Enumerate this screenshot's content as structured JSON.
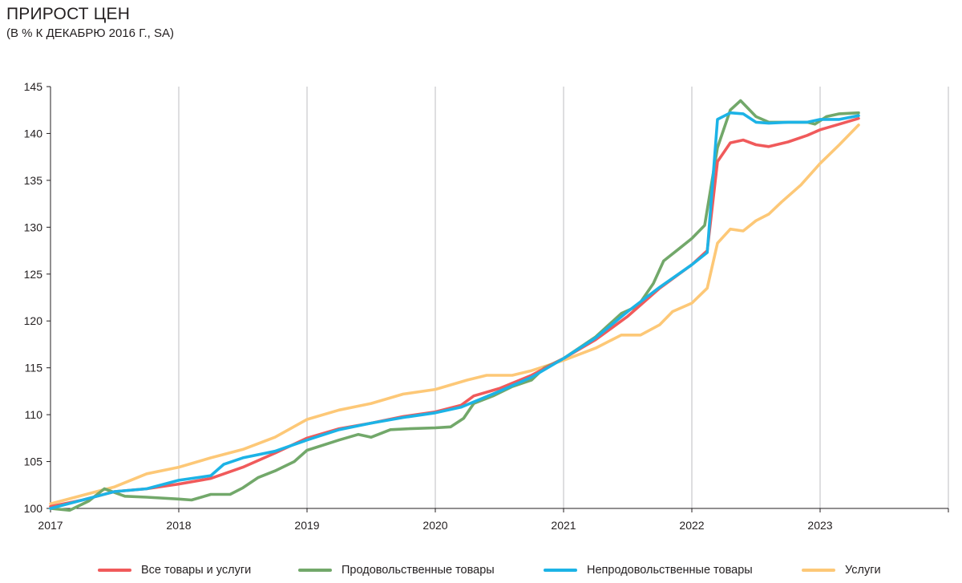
{
  "header": {
    "title": "ПРИРОСТ ЦЕН",
    "subtitle": "(В % К ДЕКАБРЮ 2016 Г., SA)"
  },
  "chart_data": {
    "type": "line",
    "title": "ПРИРОСТ ЦЕН",
    "subtitle": "(В % К ДЕКАБРЮ 2016 Г., SA)",
    "xlabel": "",
    "ylabel": "",
    "xlim": [
      2017,
      2024
    ],
    "ylim": [
      100,
      145
    ],
    "y_ticks": [
      100,
      105,
      110,
      115,
      120,
      125,
      130,
      135,
      140,
      145
    ],
    "x_ticks": [
      "2017",
      "2018",
      "2019",
      "2020",
      "2021",
      "2022",
      "2023"
    ],
    "grid": "vertical",
    "legend_position": "bottom",
    "series": [
      {
        "name": "Все товары и услуги",
        "color": "#f05a5b",
        "points": [
          [
            2017.0,
            100.2
          ],
          [
            2017.25,
            100.9
          ],
          [
            2017.5,
            101.8
          ],
          [
            2017.75,
            102.1
          ],
          [
            2018.0,
            102.6
          ],
          [
            2018.25,
            103.2
          ],
          [
            2018.5,
            104.4
          ],
          [
            2018.75,
            105.9
          ],
          [
            2019.0,
            107.5
          ],
          [
            2019.25,
            108.5
          ],
          [
            2019.5,
            109.1
          ],
          [
            2019.75,
            109.8
          ],
          [
            2020.0,
            110.3
          ],
          [
            2020.2,
            111.0
          ],
          [
            2020.3,
            112.0
          ],
          [
            2020.5,
            112.8
          ],
          [
            2020.75,
            114.2
          ],
          [
            2021.0,
            116.0
          ],
          [
            2021.25,
            118.0
          ],
          [
            2021.5,
            120.5
          ],
          [
            2021.75,
            123.5
          ],
          [
            2022.0,
            126.0
          ],
          [
            2022.12,
            127.5
          ],
          [
            2022.2,
            137.0
          ],
          [
            2022.3,
            139.0
          ],
          [
            2022.4,
            139.3
          ],
          [
            2022.5,
            138.8
          ],
          [
            2022.6,
            138.6
          ],
          [
            2022.75,
            139.1
          ],
          [
            2022.9,
            139.8
          ],
          [
            2023.0,
            140.4
          ],
          [
            2023.15,
            141.0
          ],
          [
            2023.3,
            141.6
          ]
        ]
      },
      {
        "name": "Продовольственные товары",
        "color": "#72a86a",
        "points": [
          [
            2017.0,
            100.0
          ],
          [
            2017.15,
            99.8
          ],
          [
            2017.3,
            100.8
          ],
          [
            2017.42,
            102.1
          ],
          [
            2017.58,
            101.3
          ],
          [
            2017.75,
            101.2
          ],
          [
            2018.0,
            101.0
          ],
          [
            2018.1,
            100.9
          ],
          [
            2018.25,
            101.5
          ],
          [
            2018.4,
            101.5
          ],
          [
            2018.5,
            102.2
          ],
          [
            2018.62,
            103.3
          ],
          [
            2018.75,
            104.0
          ],
          [
            2018.9,
            105.0
          ],
          [
            2019.0,
            106.2
          ],
          [
            2019.25,
            107.3
          ],
          [
            2019.4,
            107.9
          ],
          [
            2019.5,
            107.6
          ],
          [
            2019.65,
            108.4
          ],
          [
            2019.8,
            108.5
          ],
          [
            2020.0,
            108.6
          ],
          [
            2020.12,
            108.7
          ],
          [
            2020.22,
            109.6
          ],
          [
            2020.3,
            111.2
          ],
          [
            2020.45,
            112.0
          ],
          [
            2020.6,
            113.0
          ],
          [
            2020.75,
            113.7
          ],
          [
            2020.85,
            115.0
          ],
          [
            2021.0,
            116.0
          ],
          [
            2021.25,
            118.3
          ],
          [
            2021.45,
            120.8
          ],
          [
            2021.58,
            121.6
          ],
          [
            2021.7,
            124.0
          ],
          [
            2021.78,
            126.4
          ],
          [
            2021.9,
            127.7
          ],
          [
            2022.0,
            128.8
          ],
          [
            2022.1,
            130.2
          ],
          [
            2022.2,
            138.5
          ],
          [
            2022.3,
            142.5
          ],
          [
            2022.38,
            143.5
          ],
          [
            2022.5,
            141.8
          ],
          [
            2022.6,
            141.2
          ],
          [
            2022.75,
            141.2
          ],
          [
            2022.9,
            141.2
          ],
          [
            2022.96,
            141.0
          ],
          [
            2023.05,
            141.8
          ],
          [
            2023.15,
            142.1
          ],
          [
            2023.3,
            142.2
          ]
        ]
      },
      {
        "name": "Непродовольственные товары",
        "color": "#1cb3e6",
        "points": [
          [
            2017.0,
            100.0
          ],
          [
            2017.25,
            100.9
          ],
          [
            2017.5,
            101.8
          ],
          [
            2017.75,
            102.1
          ],
          [
            2018.0,
            103.0
          ],
          [
            2018.25,
            103.5
          ],
          [
            2018.35,
            104.7
          ],
          [
            2018.5,
            105.4
          ],
          [
            2018.75,
            106.1
          ],
          [
            2019.0,
            107.3
          ],
          [
            2019.25,
            108.4
          ],
          [
            2019.5,
            109.1
          ],
          [
            2019.75,
            109.7
          ],
          [
            2020.0,
            110.2
          ],
          [
            2020.2,
            110.8
          ],
          [
            2020.5,
            112.5
          ],
          [
            2020.75,
            114.0
          ],
          [
            2021.0,
            116.0
          ],
          [
            2021.25,
            118.2
          ],
          [
            2021.5,
            121.0
          ],
          [
            2021.75,
            123.6
          ],
          [
            2022.0,
            126.0
          ],
          [
            2022.12,
            127.3
          ],
          [
            2022.2,
            141.5
          ],
          [
            2022.3,
            142.2
          ],
          [
            2022.4,
            142.1
          ],
          [
            2022.5,
            141.2
          ],
          [
            2022.6,
            141.1
          ],
          [
            2022.75,
            141.2
          ],
          [
            2022.9,
            141.2
          ],
          [
            2023.0,
            141.5
          ],
          [
            2023.15,
            141.5
          ],
          [
            2023.3,
            141.9
          ]
        ]
      },
      {
        "name": "Услуги",
        "color": "#fdc877",
        "points": [
          [
            2017.0,
            100.5
          ],
          [
            2017.25,
            101.4
          ],
          [
            2017.5,
            102.3
          ],
          [
            2017.75,
            103.7
          ],
          [
            2018.0,
            104.4
          ],
          [
            2018.25,
            105.4
          ],
          [
            2018.5,
            106.3
          ],
          [
            2018.75,
            107.6
          ],
          [
            2019.0,
            109.5
          ],
          [
            2019.25,
            110.5
          ],
          [
            2019.5,
            111.2
          ],
          [
            2019.75,
            112.2
          ],
          [
            2020.0,
            112.7
          ],
          [
            2020.25,
            113.7
          ],
          [
            2020.4,
            114.2
          ],
          [
            2020.6,
            114.2
          ],
          [
            2020.75,
            114.7
          ],
          [
            2021.0,
            115.8
          ],
          [
            2021.25,
            117.1
          ],
          [
            2021.45,
            118.5
          ],
          [
            2021.6,
            118.5
          ],
          [
            2021.75,
            119.6
          ],
          [
            2021.85,
            121.0
          ],
          [
            2022.0,
            121.9
          ],
          [
            2022.12,
            123.5
          ],
          [
            2022.2,
            128.3
          ],
          [
            2022.3,
            129.8
          ],
          [
            2022.4,
            129.6
          ],
          [
            2022.5,
            130.7
          ],
          [
            2022.6,
            131.4
          ],
          [
            2022.7,
            132.7
          ],
          [
            2022.85,
            134.5
          ],
          [
            2023.0,
            136.8
          ],
          [
            2023.15,
            138.8
          ],
          [
            2023.3,
            140.9
          ]
        ]
      }
    ]
  }
}
